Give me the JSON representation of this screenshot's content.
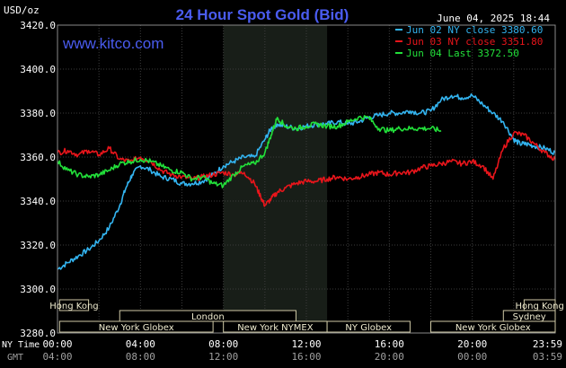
{
  "header": {
    "title": "24 Hour Spot Gold (Bid)",
    "units": "USD/oz",
    "site": "www.kitco.com",
    "timestamp": "June 04, 2025 18:44"
  },
  "axis_labels": {
    "ny_time": "NY Time",
    "gmt": "GMT"
  },
  "sessions": [
    {
      "label": "Hong Kong",
      "row": 0,
      "start": 0.1,
      "end": 1.5
    },
    {
      "label": "Hong Kong",
      "row": 0,
      "start": 22.5,
      "end": 24.0
    },
    {
      "label": "London",
      "row": 1,
      "start": 3.0,
      "end": 11.5
    },
    {
      "label": "Sydney",
      "row": 1,
      "start": 21.5,
      "end": 24.0
    },
    {
      "label": "New York Globex",
      "row": 2,
      "start": 0.1,
      "end": 7.5
    },
    {
      "label": "New York NYMEX",
      "row": 2,
      "start": 8.0,
      "end": 13.0
    },
    {
      "label": "NY Globex",
      "row": 2,
      "start": 13.0,
      "end": 17.0
    },
    {
      "label": "New York Globex",
      "row": 2,
      "start": 18.0,
      "end": 24.0
    }
  ],
  "chart_data": {
    "type": "line",
    "title": "24 Hour Spot Gold (Bid)",
    "ylabel": "USD/oz",
    "ylim": [
      3280,
      3420
    ],
    "yticks": [
      "3420.0",
      "3400.0",
      "3380.0",
      "3360.0",
      "3340.0",
      "3320.0",
      "3300.0",
      "3280.0"
    ],
    "ytick_values": [
      3420,
      3400,
      3380,
      3360,
      3340,
      3320,
      3300,
      3280
    ],
    "xlim": [
      0,
      24
    ],
    "xticks": [
      {
        "x": 0,
        "ny": "00:00",
        "gmt": "04:00"
      },
      {
        "x": 4,
        "ny": "04:00",
        "gmt": "08:00"
      },
      {
        "x": 8,
        "ny": "08:00",
        "gmt": "12:00"
      },
      {
        "x": 12,
        "ny": "12:00",
        "gmt": "16:00"
      },
      {
        "x": 16,
        "ny": "16:00",
        "gmt": "20:00"
      },
      {
        "x": 20,
        "ny": "20:00",
        "gmt": "00:00"
      },
      {
        "x": 24,
        "ny": "23:59",
        "gmt": "03:59"
      }
    ],
    "nymex_highlight": [
      8.0,
      13.0
    ],
    "grid": true,
    "legend_position": "top-right",
    "series": [
      {
        "name": "Jun 02 NY close 3380.60",
        "color": "#33b4f0",
        "x": [
          0,
          0.5,
          1,
          1.5,
          2,
          2.5,
          3,
          3.3,
          3.6,
          4,
          4.5,
          5,
          5.5,
          6,
          6.5,
          7,
          7.5,
          8,
          8.5,
          9,
          9.5,
          10,
          10.3,
          10.6,
          11,
          11.5,
          12,
          12.5,
          13,
          13.5,
          14,
          14.5,
          15,
          15.5,
          16,
          16.5,
          17,
          17.5,
          18,
          18.5,
          19,
          19.5,
          20,
          20.5,
          21,
          21.5,
          22,
          22.3,
          22.6,
          23,
          23.5,
          24
        ],
        "y": [
          3309,
          3312,
          3315,
          3318,
          3322,
          3328,
          3338,
          3346,
          3352,
          3356,
          3354,
          3351,
          3350,
          3348,
          3348,
          3349,
          3352,
          3356,
          3358,
          3360,
          3360,
          3368,
          3373,
          3375,
          3374,
          3373,
          3374,
          3375,
          3375,
          3376,
          3375,
          3376,
          3378,
          3379,
          3380,
          3380,
          3381,
          3380,
          3381,
          3386,
          3388,
          3387,
          3388,
          3384,
          3380,
          3376,
          3368,
          3366,
          3366,
          3365,
          3364,
          3362
        ]
      },
      {
        "name": "Jun 03 NY close 3351.80",
        "color": "#e8151b",
        "x": [
          0,
          0.5,
          1,
          1.5,
          2,
          2.5,
          3,
          3.5,
          4,
          4.5,
          5,
          5.5,
          6,
          6.5,
          7,
          7.5,
          8,
          8.5,
          9,
          9.5,
          9.8,
          10,
          10.3,
          10.6,
          11,
          11.5,
          12,
          12.5,
          13,
          13.5,
          14,
          14.5,
          15,
          15.5,
          16,
          16.5,
          17,
          17.5,
          18,
          18.5,
          19,
          19.5,
          20,
          20.5,
          21,
          21.5,
          22,
          22.5,
          23,
          23.5,
          24
        ],
        "y": [
          3362,
          3363,
          3361,
          3363,
          3361,
          3364,
          3359,
          3358,
          3360,
          3358,
          3354,
          3352,
          3351,
          3350,
          3351,
          3352,
          3353,
          3352,
          3353,
          3348,
          3342,
          3338,
          3341,
          3344,
          3346,
          3348,
          3349,
          3349,
          3350,
          3351,
          3350,
          3351,
          3352,
          3353,
          3352,
          3353,
          3353,
          3355,
          3356,
          3357,
          3358,
          3357,
          3358,
          3356,
          3350,
          3364,
          3371,
          3370,
          3366,
          3362,
          3359
        ]
      },
      {
        "name": "Jun 04 Last 3372.50",
        "color": "#22e03a",
        "x": [
          0,
          0.5,
          1,
          1.5,
          2,
          2.5,
          3,
          3.5,
          4,
          4.5,
          5,
          5.5,
          6,
          6.5,
          7,
          7.5,
          8,
          8.5,
          9,
          9.5,
          10,
          10.3,
          10.6,
          11,
          11.5,
          12,
          12.5,
          13,
          13.5,
          14,
          14.5,
          15,
          15.5,
          16,
          16.5,
          17,
          17.5,
          18,
          18.5
        ],
        "y": [
          3358,
          3354,
          3352,
          3351,
          3352,
          3354,
          3357,
          3358,
          3359,
          3358,
          3356,
          3354,
          3353,
          3350,
          3351,
          3348,
          3347,
          3352,
          3356,
          3357,
          3362,
          3370,
          3378,
          3374,
          3373,
          3374,
          3375,
          3374,
          3374,
          3376,
          3378,
          3378,
          3373,
          3372,
          3373,
          3373,
          3373,
          3373,
          3372
        ]
      }
    ]
  }
}
